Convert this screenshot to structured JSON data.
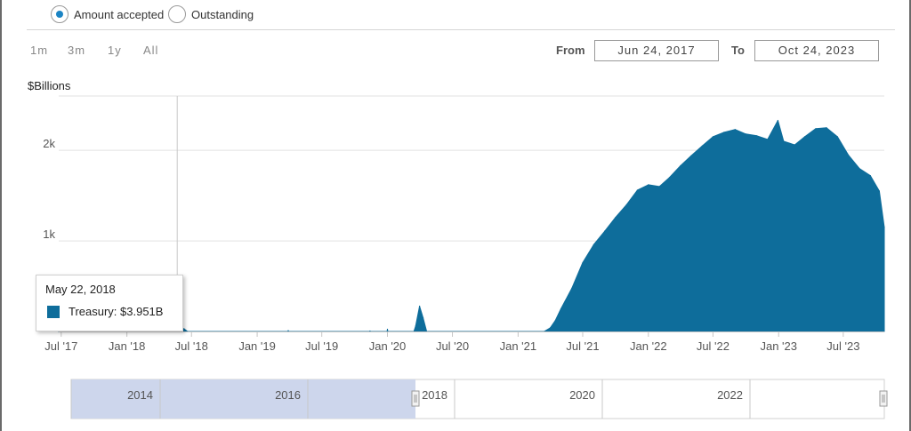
{
  "toggle": {
    "options": [
      {
        "label": "Amount accepted",
        "selected": true
      },
      {
        "label": "Outstanding",
        "selected": false
      }
    ]
  },
  "range_selector": {
    "buttons": [
      "1m",
      "3m",
      "1y",
      "All"
    ],
    "from_label": "From",
    "from_value": "Jun 24, 2017",
    "to_label": "To",
    "to_value": "Oct 24, 2023"
  },
  "tooltip": {
    "date": "May 22, 2018",
    "series_text": "Treasury: $3.951B"
  },
  "colors": {
    "series": "#0e6d9b",
    "navigator_mask": "#cdd6ec",
    "accent": "#1b84c4"
  },
  "navigator": {
    "labels": [
      "2014",
      "2016",
      "2018",
      "2020",
      "2022"
    ]
  },
  "chart_data": {
    "type": "area",
    "ylabel": "$Billions",
    "ylim": [
      0,
      2600
    ],
    "yticks": [
      {
        "value": 1000,
        "label": "1k"
      },
      {
        "value": 2000,
        "label": "2k"
      }
    ],
    "xlim": [
      "2017-06-24",
      "2023-10-24"
    ],
    "xticks": [
      {
        "date": "2017-07-01",
        "label": "Jul '17"
      },
      {
        "date": "2018-01-01",
        "label": "Jan '18"
      },
      {
        "date": "2018-07-01",
        "label": "Jul '18"
      },
      {
        "date": "2019-01-01",
        "label": "Jan '19"
      },
      {
        "date": "2019-07-01",
        "label": "Jul '19"
      },
      {
        "date": "2020-01-01",
        "label": "Jan '20"
      },
      {
        "date": "2020-07-01",
        "label": "Jul '20"
      },
      {
        "date": "2021-01-01",
        "label": "Jan '21"
      },
      {
        "date": "2021-07-01",
        "label": "Jul '21"
      },
      {
        "date": "2022-01-01",
        "label": "Jan '22"
      },
      {
        "date": "2022-07-01",
        "label": "Jul '22"
      },
      {
        "date": "2023-01-01",
        "label": "Jan '23"
      },
      {
        "date": "2023-07-01",
        "label": "Jul '23"
      }
    ],
    "series": [
      {
        "name": "Treasury",
        "points": [
          [
            "2017-06-24",
            0
          ],
          [
            "2018-05-22",
            4
          ],
          [
            "2018-06-10",
            30
          ],
          [
            "2018-06-20",
            0
          ],
          [
            "2019-03-28",
            0
          ],
          [
            "2019-03-29",
            10
          ],
          [
            "2019-03-30",
            0
          ],
          [
            "2019-11-12",
            0
          ],
          [
            "2019-11-13",
            5
          ],
          [
            "2019-11-14",
            0
          ],
          [
            "2019-12-31",
            0
          ],
          [
            "2020-01-01",
            25
          ],
          [
            "2020-01-02",
            0
          ],
          [
            "2020-03-15",
            0
          ],
          [
            "2020-03-20",
            60
          ],
          [
            "2020-03-31",
            280
          ],
          [
            "2020-04-10",
            150
          ],
          [
            "2020-04-20",
            0
          ],
          [
            "2021-03-15",
            0
          ],
          [
            "2021-04-01",
            40
          ],
          [
            "2021-04-15",
            120
          ],
          [
            "2021-05-01",
            250
          ],
          [
            "2021-06-01",
            480
          ],
          [
            "2021-07-01",
            760
          ],
          [
            "2021-08-01",
            960
          ],
          [
            "2021-09-01",
            1110
          ],
          [
            "2021-10-01",
            1260
          ],
          [
            "2021-11-01",
            1400
          ],
          [
            "2021-12-01",
            1560
          ],
          [
            "2022-01-01",
            1620
          ],
          [
            "2022-02-01",
            1600
          ],
          [
            "2022-03-01",
            1700
          ],
          [
            "2022-04-01",
            1830
          ],
          [
            "2022-05-01",
            1940
          ],
          [
            "2022-06-01",
            2050
          ],
          [
            "2022-07-01",
            2150
          ],
          [
            "2022-08-01",
            2200
          ],
          [
            "2022-09-01",
            2230
          ],
          [
            "2022-10-01",
            2180
          ],
          [
            "2022-11-01",
            2160
          ],
          [
            "2022-12-01",
            2120
          ],
          [
            "2022-12-30",
            2330
          ],
          [
            "2023-01-15",
            2100
          ],
          [
            "2023-02-15",
            2060
          ],
          [
            "2023-03-15",
            2150
          ],
          [
            "2023-04-15",
            2240
          ],
          [
            "2023-05-15",
            2250
          ],
          [
            "2023-06-15",
            2150
          ],
          [
            "2023-07-15",
            1950
          ],
          [
            "2023-08-15",
            1800
          ],
          [
            "2023-09-15",
            1720
          ],
          [
            "2023-10-10",
            1550
          ],
          [
            "2023-10-24",
            1150
          ]
        ]
      }
    ]
  }
}
